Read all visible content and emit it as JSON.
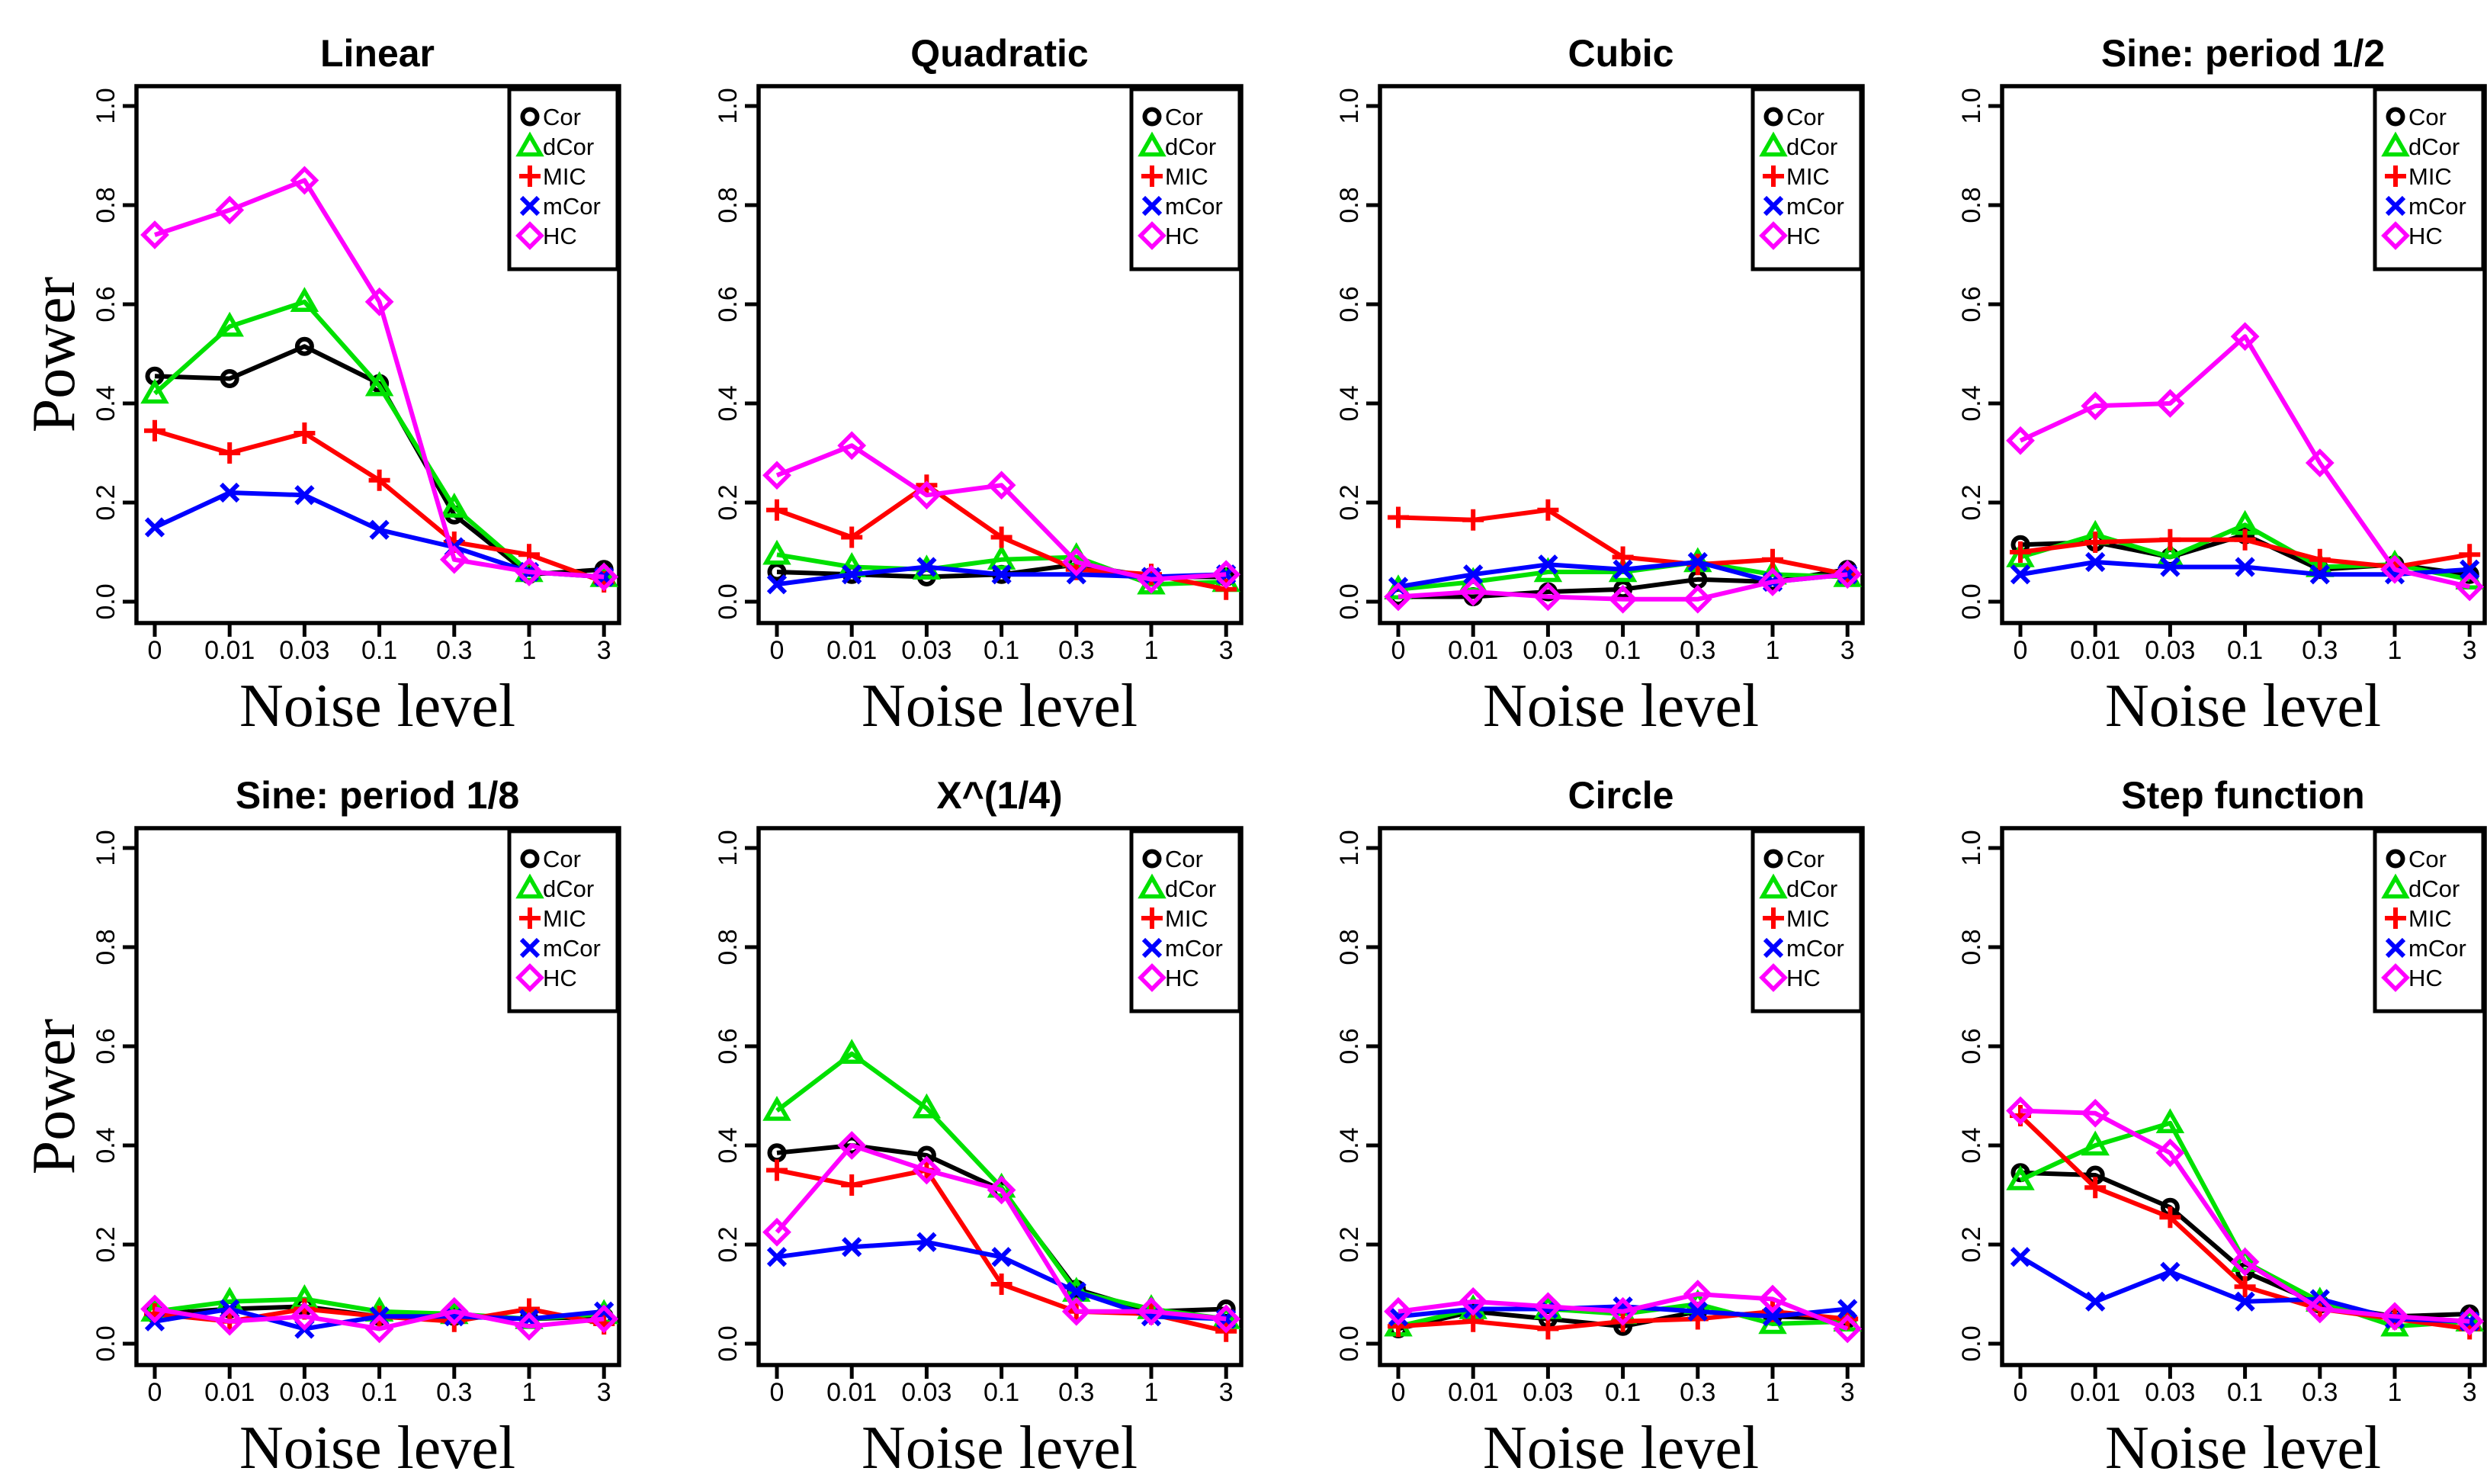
{
  "figure": {
    "xlabel": "Noise level",
    "ylabel": "Power",
    "x_tick_labels": [
      "0",
      "0.01",
      "0.03",
      "0.1",
      "0.3",
      "1",
      "3"
    ],
    "y_tick_labels": [
      "0.0",
      "0.2",
      "0.4",
      "0.6",
      "0.8",
      "1.0"
    ],
    "ylim": [
      0,
      1
    ],
    "grid": false,
    "legend_position": "top-right",
    "legend_entries": [
      "Cor",
      "dCor",
      "MIC",
      "mCor",
      "HC"
    ],
    "series_meta": {
      "Cor": {
        "color": "#000000",
        "marker": "circle"
      },
      "dCor": {
        "color": "#00E000",
        "marker": "triangle"
      },
      "MIC": {
        "color": "#FF0000",
        "marker": "plus"
      },
      "mCor": {
        "color": "#0000FF",
        "marker": "x"
      },
      "HC": {
        "color": "#FF00FF",
        "marker": "diamond"
      }
    }
  },
  "chart_data": [
    {
      "type": "line",
      "title": "Linear",
      "xlabel": "Noise level",
      "ylabel": "Power",
      "categories": [
        "0",
        "0.01",
        "0.03",
        "0.1",
        "0.3",
        "1",
        "3"
      ],
      "series": [
        {
          "name": "Cor",
          "values": [
            0.455,
            0.45,
            0.515,
            0.44,
            0.175,
            0.055,
            0.065
          ]
        },
        {
          "name": "dCor",
          "values": [
            0.42,
            0.555,
            0.605,
            0.435,
            0.19,
            0.06,
            0.05
          ]
        },
        {
          "name": "MIC",
          "values": [
            0.345,
            0.3,
            0.34,
            0.245,
            0.12,
            0.095,
            0.04
          ]
        },
        {
          "name": "mCor",
          "values": [
            0.15,
            0.22,
            0.215,
            0.145,
            0.11,
            0.06,
            0.05
          ]
        },
        {
          "name": "HC",
          "values": [
            0.74,
            0.79,
            0.85,
            0.605,
            0.085,
            0.06,
            0.05
          ]
        }
      ]
    },
    {
      "type": "line",
      "title": "Quadratic",
      "xlabel": "Noise level",
      "categories": [
        "0",
        "0.01",
        "0.03",
        "0.1",
        "0.3",
        "1",
        "3"
      ],
      "series": [
        {
          "name": "Cor",
          "values": [
            0.06,
            0.055,
            0.05,
            0.055,
            0.075,
            0.05,
            0.05
          ]
        },
        {
          "name": "dCor",
          "values": [
            0.095,
            0.07,
            0.065,
            0.085,
            0.09,
            0.035,
            0.04
          ]
        },
        {
          "name": "MIC",
          "values": [
            0.185,
            0.13,
            0.235,
            0.13,
            0.065,
            0.055,
            0.025
          ]
        },
        {
          "name": "mCor",
          "values": [
            0.035,
            0.055,
            0.07,
            0.055,
            0.055,
            0.05,
            0.055
          ]
        },
        {
          "name": "HC",
          "values": [
            0.255,
            0.315,
            0.215,
            0.235,
            0.08,
            0.045,
            0.055
          ]
        }
      ]
    },
    {
      "type": "line",
      "title": "Cubic",
      "xlabel": "Noise level",
      "categories": [
        "0",
        "0.01",
        "0.03",
        "0.1",
        "0.3",
        "1",
        "3"
      ],
      "series": [
        {
          "name": "Cor",
          "values": [
            0.01,
            0.01,
            0.02,
            0.025,
            0.045,
            0.04,
            0.065
          ]
        },
        {
          "name": "dCor",
          "values": [
            0.025,
            0.04,
            0.06,
            0.06,
            0.08,
            0.055,
            0.05
          ]
        },
        {
          "name": "MIC",
          "values": [
            0.17,
            0.165,
            0.185,
            0.09,
            0.075,
            0.085,
            0.055
          ]
        },
        {
          "name": "mCor",
          "values": [
            0.03,
            0.055,
            0.075,
            0.065,
            0.08,
            0.04,
            0.055
          ]
        },
        {
          "name": "HC",
          "values": [
            0.01,
            0.02,
            0.01,
            0.005,
            0.005,
            0.04,
            0.055
          ]
        }
      ]
    },
    {
      "type": "line",
      "title": "Sine: period 1/2",
      "xlabel": "Noise level",
      "categories": [
        "0",
        "0.01",
        "0.03",
        "0.1",
        "0.3",
        "1",
        "3"
      ],
      "series": [
        {
          "name": "Cor",
          "values": [
            0.115,
            0.12,
            0.09,
            0.135,
            0.065,
            0.075,
            0.055
          ]
        },
        {
          "name": "dCor",
          "values": [
            0.09,
            0.135,
            0.09,
            0.155,
            0.07,
            0.075,
            0.045
          ]
        },
        {
          "name": "MIC",
          "values": [
            0.1,
            0.12,
            0.125,
            0.125,
            0.085,
            0.07,
            0.095
          ]
        },
        {
          "name": "mCor",
          "values": [
            0.055,
            0.08,
            0.07,
            0.07,
            0.055,
            0.055,
            0.065
          ]
        },
        {
          "name": "HC",
          "values": [
            0.325,
            0.395,
            0.4,
            0.535,
            0.28,
            0.065,
            0.03
          ]
        }
      ]
    },
    {
      "type": "line",
      "title": "Sine: period 1/8",
      "xlabel": "Noise level",
      "ylabel": "Power",
      "categories": [
        "0",
        "0.01",
        "0.03",
        "0.1",
        "0.3",
        "1",
        "3"
      ],
      "series": [
        {
          "name": "Cor",
          "values": [
            0.06,
            0.07,
            0.075,
            0.055,
            0.055,
            0.05,
            0.055
          ]
        },
        {
          "name": "dCor",
          "values": [
            0.065,
            0.085,
            0.09,
            0.065,
            0.06,
            0.05,
            0.06
          ]
        },
        {
          "name": "MIC",
          "values": [
            0.06,
            0.045,
            0.07,
            0.055,
            0.045,
            0.07,
            0.04
          ]
        },
        {
          "name": "mCor",
          "values": [
            0.045,
            0.07,
            0.03,
            0.055,
            0.055,
            0.05,
            0.065
          ]
        },
        {
          "name": "HC",
          "values": [
            0.07,
            0.045,
            0.055,
            0.03,
            0.065,
            0.035,
            0.05
          ]
        }
      ]
    },
    {
      "type": "line",
      "title": "X^(1/4)",
      "xlabel": "Noise level",
      "categories": [
        "0",
        "0.01",
        "0.03",
        "0.1",
        "0.3",
        "1",
        "3"
      ],
      "series": [
        {
          "name": "Cor",
          "values": [
            0.385,
            0.4,
            0.38,
            0.31,
            0.11,
            0.065,
            0.07
          ]
        },
        {
          "name": "dCor",
          "values": [
            0.47,
            0.585,
            0.475,
            0.315,
            0.105,
            0.07,
            0.05
          ]
        },
        {
          "name": "MIC",
          "values": [
            0.35,
            0.32,
            0.35,
            0.12,
            0.065,
            0.06,
            0.025
          ]
        },
        {
          "name": "mCor",
          "values": [
            0.175,
            0.195,
            0.205,
            0.175,
            0.105,
            0.055,
            0.05
          ]
        },
        {
          "name": "HC",
          "values": [
            0.225,
            0.4,
            0.35,
            0.31,
            0.065,
            0.065,
            0.05
          ]
        }
      ]
    },
    {
      "type": "line",
      "title": "Circle",
      "xlabel": "Noise level",
      "categories": [
        "0",
        "0.01",
        "0.03",
        "0.1",
        "0.3",
        "1",
        "3"
      ],
      "series": [
        {
          "name": "Cor",
          "values": [
            0.03,
            0.065,
            0.05,
            0.035,
            0.065,
            0.055,
            0.05
          ]
        },
        {
          "name": "dCor",
          "values": [
            0.035,
            0.07,
            0.07,
            0.06,
            0.08,
            0.04,
            0.045
          ]
        },
        {
          "name": "MIC",
          "values": [
            0.035,
            0.045,
            0.03,
            0.045,
            0.05,
            0.065,
            0.05
          ]
        },
        {
          "name": "mCor",
          "values": [
            0.055,
            0.07,
            0.07,
            0.075,
            0.065,
            0.055,
            0.07
          ]
        },
        {
          "name": "HC",
          "values": [
            0.065,
            0.085,
            0.075,
            0.065,
            0.1,
            0.09,
            0.03
          ]
        }
      ]
    },
    {
      "type": "line",
      "title": "Step function",
      "xlabel": "Noise level",
      "categories": [
        "0",
        "0.01",
        "0.03",
        "0.1",
        "0.3",
        "1",
        "3"
      ],
      "series": [
        {
          "name": "Cor",
          "values": [
            0.345,
            0.34,
            0.275,
            0.145,
            0.08,
            0.055,
            0.06
          ]
        },
        {
          "name": "dCor",
          "values": [
            0.33,
            0.4,
            0.445,
            0.165,
            0.085,
            0.035,
            0.045
          ]
        },
        {
          "name": "MIC",
          "values": [
            0.46,
            0.315,
            0.255,
            0.115,
            0.07,
            0.05,
            0.03
          ]
        },
        {
          "name": "mCor",
          "values": [
            0.175,
            0.085,
            0.145,
            0.085,
            0.09,
            0.05,
            0.045
          ]
        },
        {
          "name": "HC",
          "values": [
            0.47,
            0.465,
            0.385,
            0.165,
            0.07,
            0.055,
            0.045
          ]
        }
      ]
    }
  ]
}
